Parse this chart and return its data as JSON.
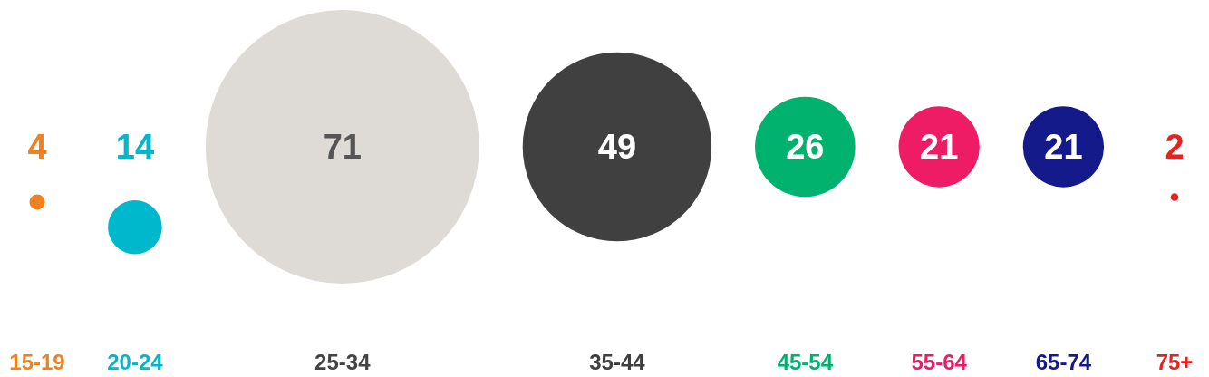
{
  "chart_data": {
    "type": "other",
    "categories": [
      "15-19",
      "20-24",
      "25-34",
      "35-44",
      "45-54",
      "55-64",
      "65-74",
      "75+"
    ],
    "values": [
      4,
      14,
      71,
      49,
      26,
      21,
      21,
      2
    ],
    "colors": [
      "#f28021",
      "#00b8cc",
      "#dedbd7",
      "#404040",
      "#00b26e",
      "#ed1c64",
      "#141a8a",
      "#e52421"
    ],
    "data_labels": true
  }
}
